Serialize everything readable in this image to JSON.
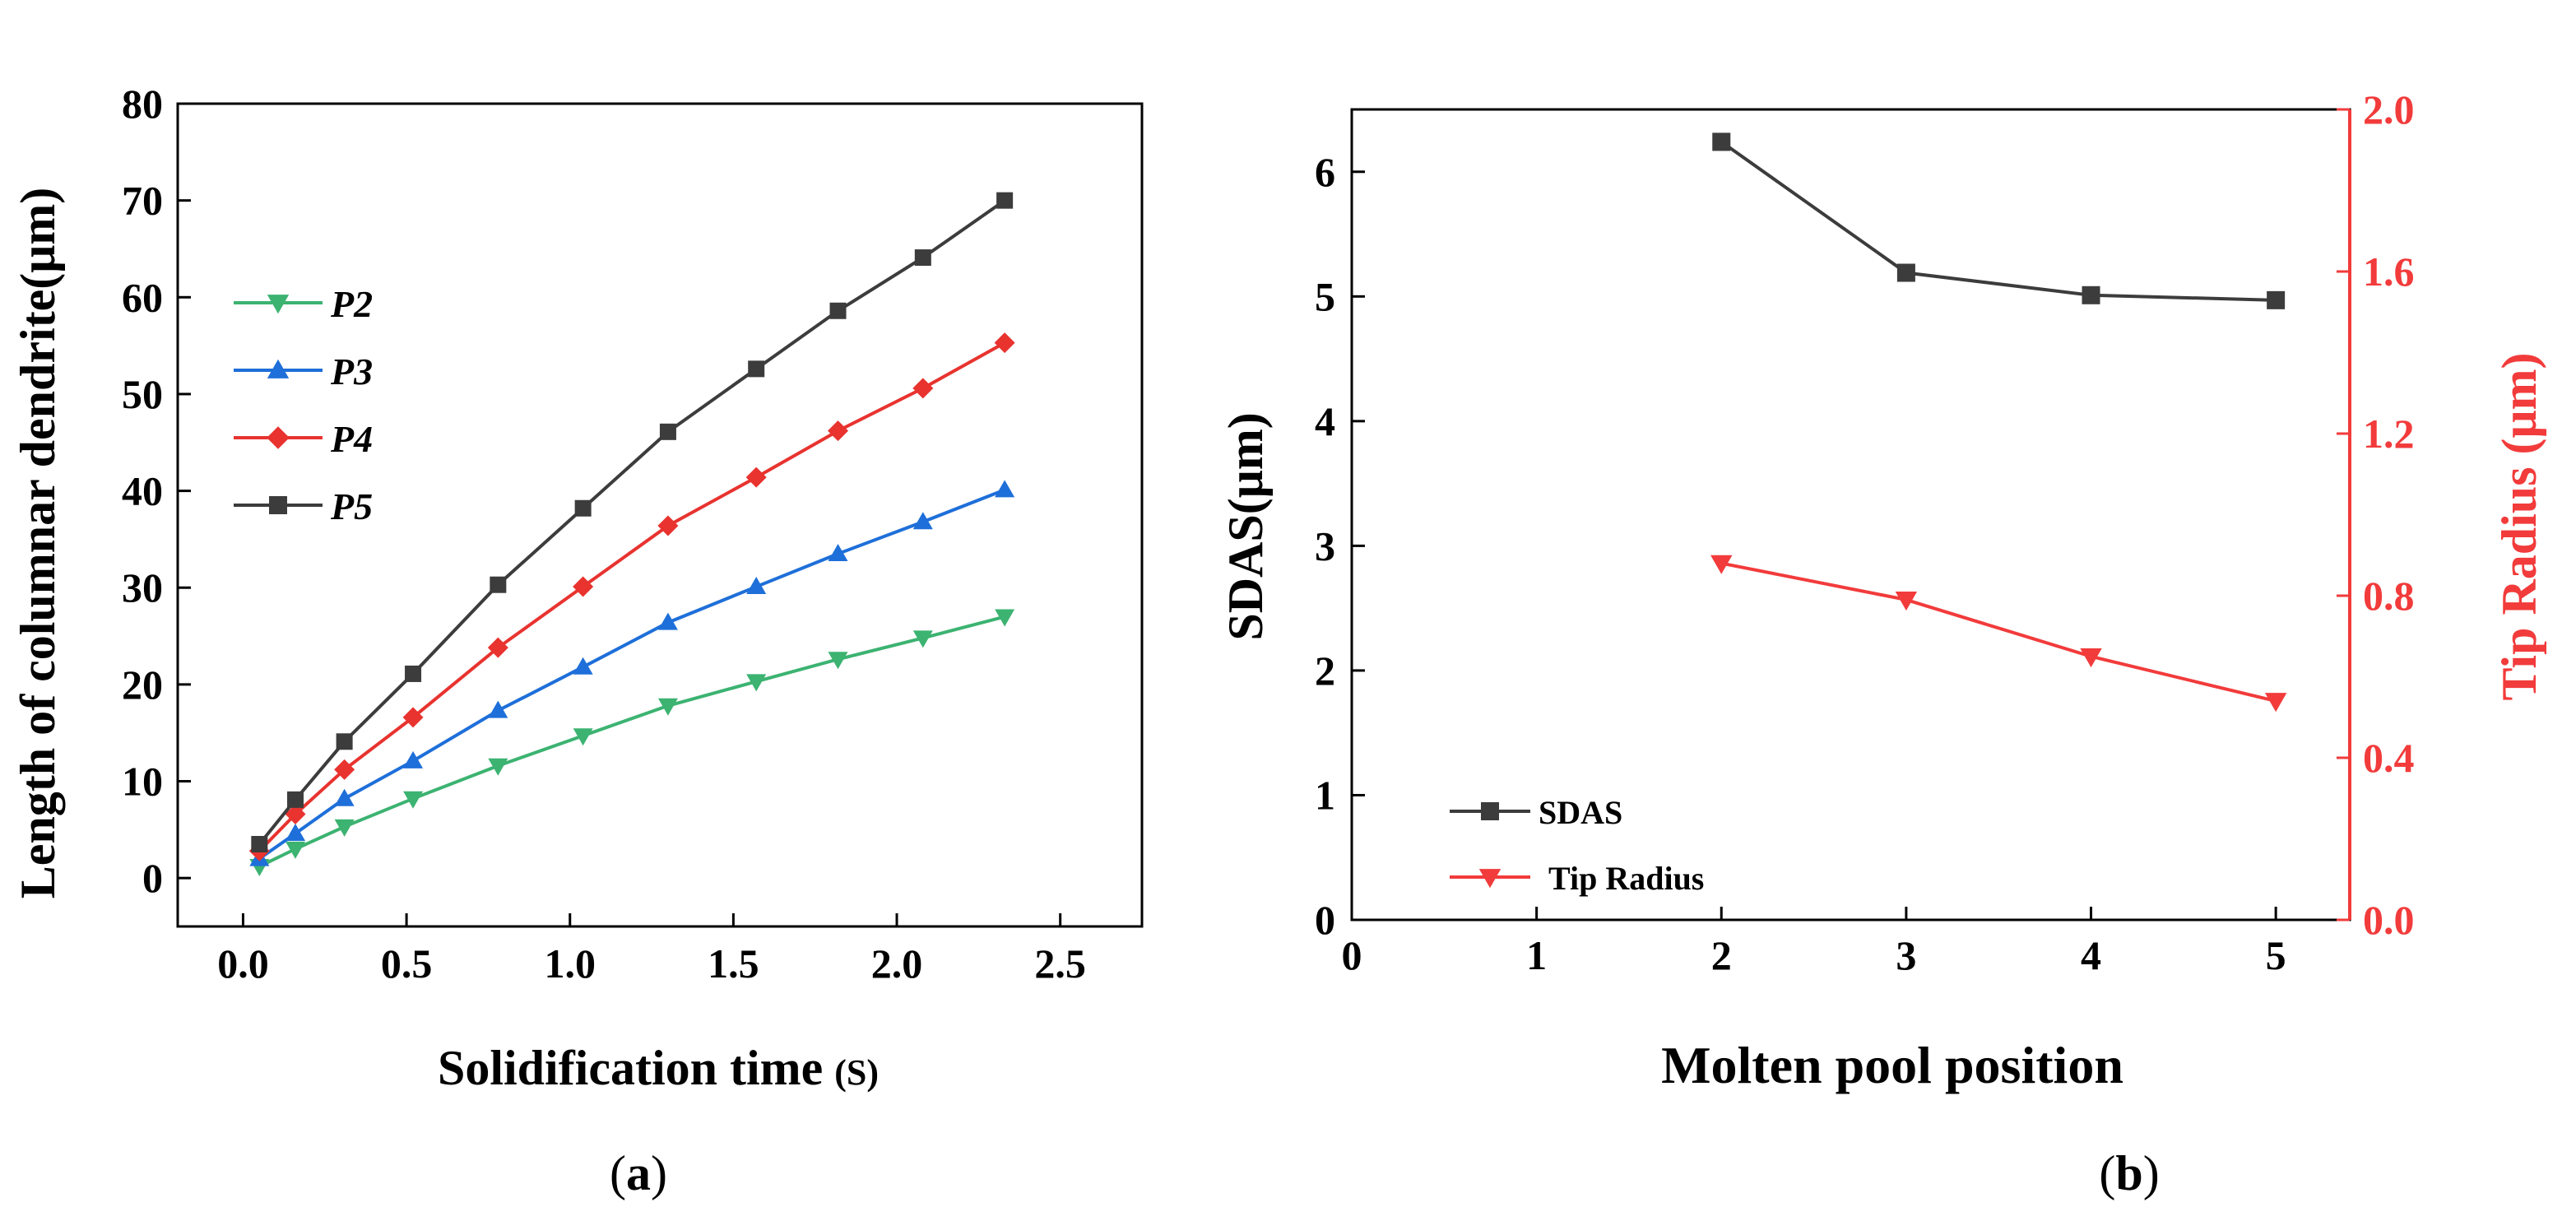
{
  "chart_data": [
    {
      "id": "a",
      "type": "line",
      "panel_label": {
        "prefix": "(",
        "letter": "a",
        "suffix": ")"
      },
      "xlabel": {
        "main": "Solidification time",
        "unit": "(S)"
      },
      "ylabel": "Length of columnar dendrite(μm)",
      "xlim": [
        -0.2,
        2.75
      ],
      "ylim": [
        -5,
        80
      ],
      "xticks": [
        "0.0",
        "0.5",
        "1.0",
        "1.5",
        "2.0",
        "2.5"
      ],
      "yticks": [
        "0",
        "10",
        "20",
        "30",
        "40",
        "50",
        "60",
        "70",
        "80"
      ],
      "x": [
        0.05,
        0.16,
        0.31,
        0.52,
        0.78,
        1.04,
        1.3,
        1.57,
        1.82,
        2.08,
        2.33
      ],
      "series": [
        {
          "name": "P2",
          "color": "#3cb371",
          "marker": "triangle-down",
          "values": [
            1.2,
            3.0,
            5.3,
            8.2,
            11.6,
            14.7,
            17.8,
            20.3,
            22.6,
            24.8,
            27.0
          ]
        },
        {
          "name": "P3",
          "color": "#1e6fd9",
          "marker": "triangle-up",
          "values": [
            2.0,
            4.6,
            8.2,
            12.1,
            17.3,
            21.8,
            26.4,
            30.1,
            33.5,
            36.8,
            40.1
          ]
        },
        {
          "name": "P4",
          "color": "#e8332f",
          "marker": "diamond",
          "values": [
            2.8,
            6.6,
            11.2,
            16.6,
            23.8,
            30.1,
            36.4,
            41.4,
            46.2,
            50.6,
            55.3
          ]
        },
        {
          "name": "P5",
          "color": "#3c3c3c",
          "marker": "square",
          "values": [
            3.5,
            8.1,
            14.1,
            21.1,
            30.3,
            38.2,
            46.1,
            52.6,
            58.6,
            64.1,
            70.0
          ]
        }
      ],
      "legend": {
        "position": "upper-left",
        "entries": [
          "P2",
          "P3",
          "P4",
          "P5"
        ]
      }
    },
    {
      "id": "b",
      "type": "line",
      "panel_label": {
        "prefix": "(",
        "letter": "b",
        "suffix": ")"
      },
      "xlabel": "Molten pool position",
      "ylabel_left": "SDAS(μm)",
      "ylabel_right": "Tip Radius (μm)",
      "xlim": [
        0,
        5.4
      ],
      "ylim_left": [
        0,
        6.5
      ],
      "ylim_right": [
        0,
        2.0
      ],
      "xticks": [
        "0",
        "1",
        "2",
        "3",
        "4",
        "5"
      ],
      "yticks_left": [
        "0",
        "1",
        "2",
        "3",
        "4",
        "5",
        "6"
      ],
      "yticks_right": [
        "0.0",
        "0.4",
        "0.8",
        "1.2",
        "1.6",
        "2.0"
      ],
      "x": [
        2,
        3,
        4,
        5
      ],
      "series": [
        {
          "name": "SDAS",
          "axis": "left",
          "color": "#3c3c3c",
          "marker": "square",
          "values": [
            6.24,
            5.19,
            5.01,
            4.97
          ]
        },
        {
          "name": "Tip Radius",
          "axis": "right",
          "color": "#f23b3b",
          "marker": "triangle-down",
          "values": [
            0.88,
            0.79,
            0.65,
            0.54
          ]
        }
      ],
      "right_axis_color": "#f23b3b",
      "legend": {
        "position": "lower-left",
        "entries": [
          "SDAS",
          "Tip Radius"
        ]
      }
    }
  ]
}
